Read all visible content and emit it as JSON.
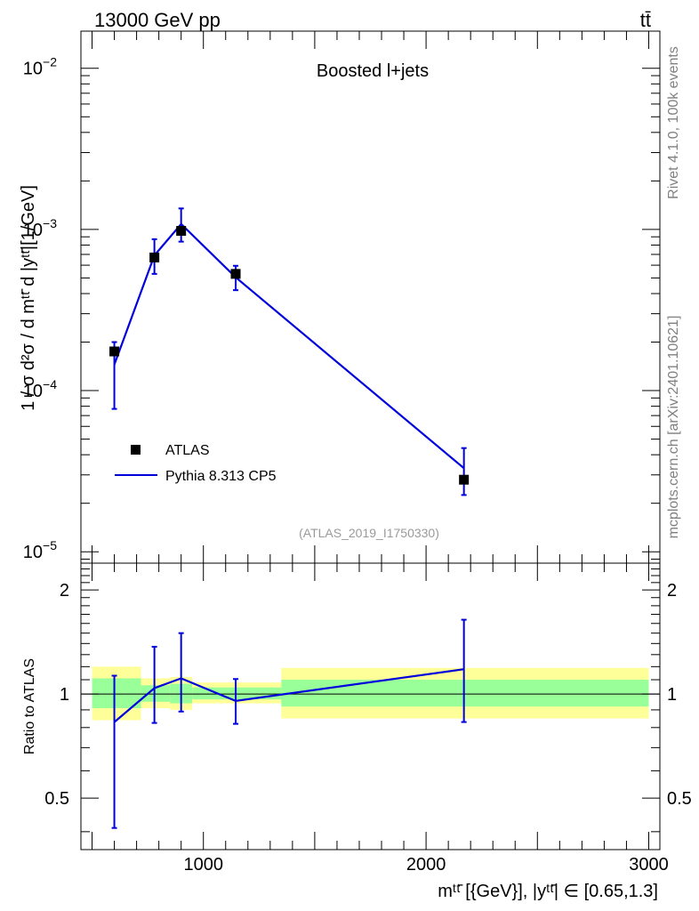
{
  "header": {
    "left": "13000 GeV pp",
    "right": "tt̄"
  },
  "side_labels": {
    "rivet": "Rivet 4.1.0,  100k events",
    "mcplots": "mcplots.cern.ch [arXiv:2401.10621]"
  },
  "chart_data": [
    {
      "type": "scatter",
      "panel": "main",
      "title": "Boosted l+jets",
      "annotation": "(ATLAS_2019_I1750330)",
      "ylabel": "1 / σ d²σ / d mᵗᵗ̄ d |yᵗᵗ̄|[1/GeV]",
      "xlim": [
        450,
        3050
      ],
      "ylim": [
        8.5e-06,
        0.017
      ],
      "yscale": "log",
      "yticks": [
        {
          "value": 0.01,
          "base": "10",
          "exp": "−2"
        },
        {
          "value": 0.001,
          "base": "10",
          "exp": "−3"
        },
        {
          "value": 0.0001,
          "base": "10",
          "exp": "−4"
        },
        {
          "value": 1e-05,
          "base": "10",
          "exp": "−5"
        }
      ],
      "legend_position": "lower-left",
      "series": [
        {
          "name": "ATLAS",
          "style": "markers",
          "color": "#000000",
          "x": [
            600,
            780,
            900,
            1145,
            2170
          ],
          "y": [
            0.000175,
            0.00067,
            0.00098,
            0.00053,
            2.8e-05
          ],
          "yerr_low": [
            9.8e-05,
            0.00014,
            0.00014,
            0.00011,
            5.5e-06
          ],
          "yerr_high": [
            2.5e-05,
            0.0002,
            0.00037,
            6.5e-05,
            1.6e-05
          ]
        },
        {
          "name": "Pythia 8.313 CP5",
          "style": "line",
          "color": "#0000dd",
          "x": [
            600,
            780,
            900,
            1145,
            2170
          ],
          "y": [
            0.000145,
            0.00069,
            0.00108,
            0.000505,
            3.3e-05
          ]
        }
      ]
    },
    {
      "type": "line",
      "panel": "ratio",
      "ylabel": "Ratio to ATLAS",
      "xlabel": "mᵗᵗ̄ [{GeV}], |yᵗᵗ̄| ∈ [0.65,1.3]",
      "xlim": [
        450,
        3050
      ],
      "ylim": [
        0.355,
        2.39
      ],
      "yscale": "log",
      "xticks": [
        1000,
        2000,
        3000
      ],
      "yticks": [
        {
          "value": 0.5,
          "label": "0.5"
        },
        {
          "value": 1,
          "label": "1"
        },
        {
          "value": 2,
          "label": "2"
        }
      ],
      "reference_line": 1,
      "bands": [
        {
          "x_from": 500,
          "x_to": 720,
          "outer": [
            0.84,
            1.2
          ],
          "inner": [
            0.91,
            1.11
          ]
        },
        {
          "x_from": 720,
          "x_to": 850,
          "outer": [
            0.91,
            1.11
          ],
          "inner": [
            0.95,
            1.06
          ]
        },
        {
          "x_from": 850,
          "x_to": 950,
          "outer": [
            0.9,
            1.12
          ],
          "inner": [
            0.94,
            1.07
          ]
        },
        {
          "x_from": 950,
          "x_to": 1350,
          "outer": [
            0.94,
            1.08
          ],
          "inner": [
            0.965,
            1.045
          ]
        },
        {
          "x_from": 1350,
          "x_to": 3000,
          "outer": [
            0.85,
            1.19
          ],
          "inner": [
            0.92,
            1.1
          ]
        }
      ],
      "series": [
        {
          "name": "Pythia 8.313 CP5",
          "color": "#0000dd",
          "x": [
            600,
            780,
            900,
            1145,
            2170
          ],
          "y": [
            0.83,
            1.04,
            1.11,
            0.955,
            1.18
          ],
          "yerr_low": [
            0.42,
            0.215,
            0.22,
            0.135,
            0.35
          ],
          "yerr_high": [
            0.3,
            0.33,
            0.39,
            0.15,
            0.46
          ]
        }
      ]
    }
  ]
}
